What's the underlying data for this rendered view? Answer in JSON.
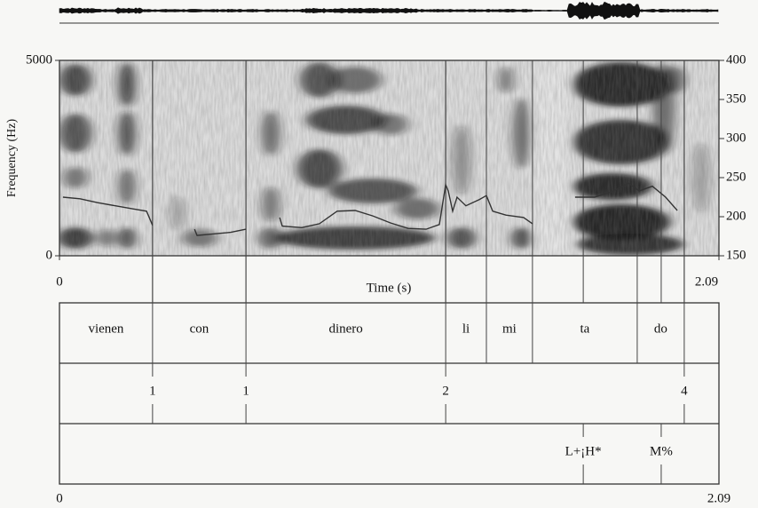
{
  "chart_data": {
    "type": "spectrogram",
    "ylabel": "Frequency (Hz)",
    "xlabel": "Time (s)",
    "xlim": [
      0,
      2.09
    ],
    "xticks": [
      0,
      2.09
    ],
    "ylim": [
      0,
      5000
    ],
    "yticks": [
      0,
      5000
    ],
    "y2lim": [
      150,
      400
    ],
    "y2ticks": [
      150,
      200,
      250,
      300,
      350,
      400
    ],
    "pitch": {
      "axis": "y2",
      "color": "#333333",
      "x": [
        0.011,
        0.065,
        0.121,
        0.177,
        0.233,
        0.276,
        0.295,
        null,
        0.428,
        0.436,
        0.487,
        0.543,
        0.591,
        null,
        0.698,
        0.706,
        0.768,
        0.824,
        0.88,
        0.937,
        0.993,
        1.049,
        1.105,
        1.162,
        1.204,
        1.224,
        1.232,
        1.246,
        1.26,
        1.288,
        1.331,
        1.353,
        1.373,
        1.415,
        1.471,
        1.499,
        null,
        1.634,
        1.696,
        1.752,
        1.803,
        1.837,
        1.879,
        1.921,
        1.958
      ],
      "values": [
        225,
        223,
        218,
        214,
        210,
        207,
        189,
        null,
        184,
        176,
        178,
        180,
        184,
        null,
        199,
        188,
        186,
        191,
        207,
        208,
        201,
        192,
        185,
        184,
        190,
        241,
        233,
        207,
        225,
        214,
        222,
        227,
        207,
        202,
        199,
        191,
        null,
        225,
        225,
        232,
        243,
        233,
        239,
        225,
        208
      ]
    },
    "tiers": [
      {
        "kind": "interval",
        "intervals": [
          {
            "start": 0,
            "end": 0.295,
            "label": "vienen"
          },
          {
            "start": 0.295,
            "end": 0.591,
            "label": "con"
          },
          {
            "start": 0.591,
            "end": 1.224,
            "label": "dinero"
          },
          {
            "start": 1.224,
            "end": 1.353,
            "label": "li"
          },
          {
            "start": 1.353,
            "end": 1.499,
            "label": "mi"
          },
          {
            "start": 1.499,
            "end": 1.831,
            "label": "ta"
          },
          {
            "start": 1.831,
            "end": 1.98,
            "label": "do"
          }
        ]
      },
      {
        "kind": "point",
        "points": [
          {
            "time": 0.295,
            "label": "1"
          },
          {
            "time": 0.591,
            "label": "1"
          },
          {
            "time": 1.224,
            "label": "2"
          },
          {
            "time": 1.98,
            "label": "4"
          }
        ]
      },
      {
        "kind": "point",
        "points": [
          {
            "time": 1.66,
            "label": "L+¡H*"
          },
          {
            "time": 1.907,
            "label": "M%"
          }
        ]
      }
    ]
  }
}
